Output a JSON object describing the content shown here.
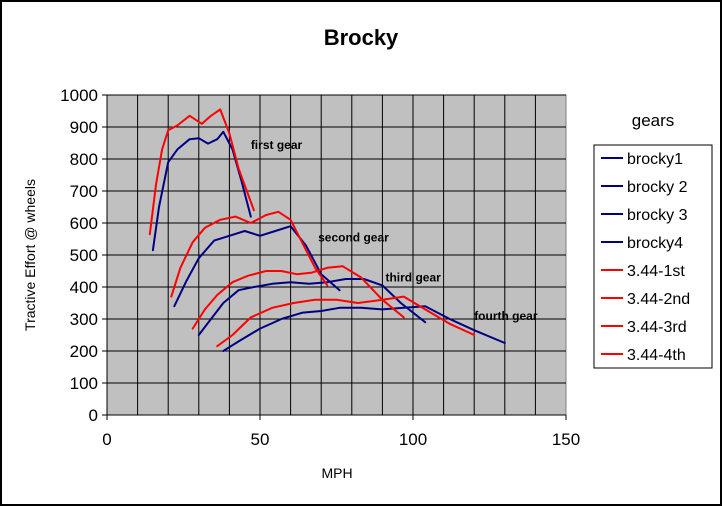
{
  "chart_data": {
    "type": "line",
    "title": "Brocky",
    "xlabel": "MPH",
    "ylabel": "Tractive Effort @ wheels",
    "xlim": [
      0,
      150
    ],
    "ylim": [
      0,
      1000
    ],
    "x_ticks": [
      "0",
      "50",
      "100",
      "150"
    ],
    "y_ticks": [
      "0",
      "100",
      "200",
      "300",
      "400",
      "500",
      "600",
      "700",
      "800",
      "900",
      "1000"
    ],
    "grid": true,
    "plot_background": "#c0c0c0",
    "legend": {
      "title": "gears",
      "placement": "right"
    },
    "annotations": [
      {
        "text": "first gear",
        "x": 47,
        "y": 843
      },
      {
        "text": "second gear",
        "x": 69,
        "y": 555
      },
      {
        "text": "third gear",
        "x": 91,
        "y": 430
      },
      {
        "text": "fourth gear",
        "x": 120,
        "y": 310
      }
    ],
    "series": [
      {
        "name": "brocky1",
        "color": "#000080",
        "x": [
          15,
          17,
          20,
          23,
          27,
          30,
          33,
          36,
          38,
          41,
          44,
          47
        ],
        "y": [
          515,
          650,
          790,
          830,
          862,
          865,
          848,
          862,
          885,
          830,
          730,
          620
        ]
      },
      {
        "name": "brocky 2",
        "color": "#000080",
        "x": [
          22,
          26,
          30,
          35,
          40,
          45,
          50,
          55,
          60,
          65,
          70,
          76
        ],
        "y": [
          340,
          420,
          490,
          545,
          560,
          575,
          560,
          575,
          590,
          530,
          440,
          390
        ]
      },
      {
        "name": "brocky 3",
        "color": "#000080",
        "x": [
          30,
          34,
          38,
          43,
          48,
          54,
          60,
          66,
          72,
          78,
          84,
          90,
          96,
          104
        ],
        "y": [
          250,
          300,
          350,
          390,
          400,
          410,
          415,
          410,
          415,
          425,
          425,
          405,
          350,
          290
        ]
      },
      {
        "name": "brocky4",
        "color": "#000080",
        "x": [
          38,
          43,
          50,
          57,
          64,
          70,
          76,
          83,
          90,
          97,
          104,
          112,
          120,
          130
        ],
        "y": [
          200,
          230,
          270,
          300,
          320,
          325,
          335,
          335,
          330,
          335,
          340,
          300,
          265,
          225
        ]
      },
      {
        "name": "3.44-1st",
        "color": "#ff0000",
        "x": [
          14,
          16,
          18,
          20,
          23,
          27,
          31,
          34,
          37,
          40,
          43,
          48
        ],
        "y": [
          565,
          720,
          830,
          890,
          905,
          935,
          910,
          935,
          955,
          880,
          770,
          640
        ]
      },
      {
        "name": "3.44-2nd",
        "color": "#ff0000",
        "x": [
          21,
          24,
          28,
          32,
          37,
          42,
          47,
          52,
          56,
          60,
          64,
          68,
          72
        ],
        "y": [
          370,
          460,
          540,
          585,
          610,
          620,
          600,
          625,
          635,
          610,
          535,
          460,
          405
        ]
      },
      {
        "name": "3.44-3rd",
        "color": "#ff0000",
        "x": [
          28,
          32,
          36,
          41,
          46,
          52,
          57,
          62,
          67,
          72,
          77,
          83,
          90,
          97
        ],
        "y": [
          270,
          330,
          375,
          415,
          435,
          450,
          450,
          440,
          445,
          460,
          465,
          430,
          360,
          305
        ]
      },
      {
        "name": "3.44-4th",
        "color": "#ff0000",
        "x": [
          36,
          41,
          47,
          54,
          61,
          68,
          75,
          82,
          90,
          97,
          104,
          112,
          120
        ],
        "y": [
          215,
          250,
          305,
          335,
          350,
          360,
          360,
          350,
          360,
          370,
          330,
          285,
          250
        ]
      }
    ]
  }
}
